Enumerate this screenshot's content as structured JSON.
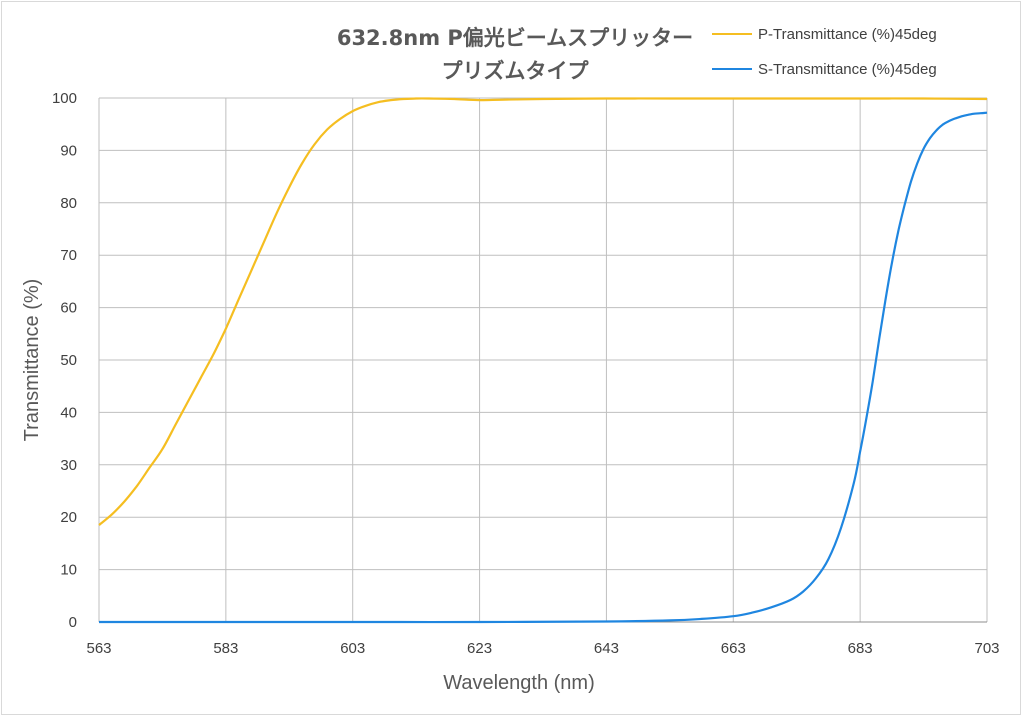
{
  "chart_data": {
    "type": "line",
    "title_line1": "632.8nm P偏光ビームスプリッター",
    "title_line2": "プリズムタイプ",
    "xlabel": "Wavelength (nm)",
    "ylabel": "Transmittance (%)",
    "xlim": [
      563,
      703
    ],
    "ylim": [
      0,
      100
    ],
    "xticks": [
      563,
      583,
      603,
      623,
      643,
      663,
      683,
      703
    ],
    "yticks": [
      0,
      10,
      20,
      30,
      40,
      50,
      60,
      70,
      80,
      90,
      100
    ],
    "grid": true,
    "legend_position": "top-right",
    "series": [
      {
        "name": "P-Transmittance (%)45deg",
        "color": "#F5BE21",
        "x": [
          563,
          565,
          567,
          569,
          571,
          573,
          575,
          577,
          579,
          581,
          583,
          585,
          587,
          589,
          591,
          593,
          595,
          597,
          599,
          601,
          603,
          605,
          607,
          609,
          611,
          613,
          615,
          619,
          623,
          627,
          633,
          643,
          653,
          663,
          673,
          683,
          693,
          703
        ],
        "y": [
          18.5,
          20.5,
          23,
          26,
          29.5,
          33,
          37.5,
          42,
          46.5,
          51,
          56,
          61.5,
          67,
          72.5,
          78,
          83,
          87.5,
          91.2,
          94,
          96,
          97.5,
          98.5,
          99.2,
          99.6,
          99.8,
          99.9,
          99.9,
          99.8,
          99.6,
          99.7,
          99.8,
          99.9,
          99.9,
          99.9,
          99.9,
          99.9,
          99.9,
          99.8
        ]
      },
      {
        "name": "S-Transmittance (%)45deg",
        "color": "#1F86E0",
        "x": [
          563,
          583,
          603,
          623,
          643,
          653,
          658,
          663,
          666,
          669,
          672,
          674,
          676,
          678,
          680,
          682,
          683,
          684,
          685,
          686,
          687,
          688,
          689,
          690,
          691,
          692,
          693,
          694,
          695,
          696,
          697,
          698,
          699,
          700,
          701,
          702,
          703
        ],
        "y": [
          0,
          0,
          0,
          0,
          0.1,
          0.3,
          0.6,
          1.1,
          1.8,
          2.8,
          4.2,
          5.8,
          8.3,
          12,
          18,
          26.5,
          32.5,
          39,
          46,
          54,
          61.5,
          68.5,
          74.5,
          79.5,
          84,
          87.5,
          90.3,
          92.3,
          93.8,
          94.9,
          95.6,
          96.1,
          96.5,
          96.8,
          97,
          97.1,
          97.2
        ]
      }
    ]
  }
}
